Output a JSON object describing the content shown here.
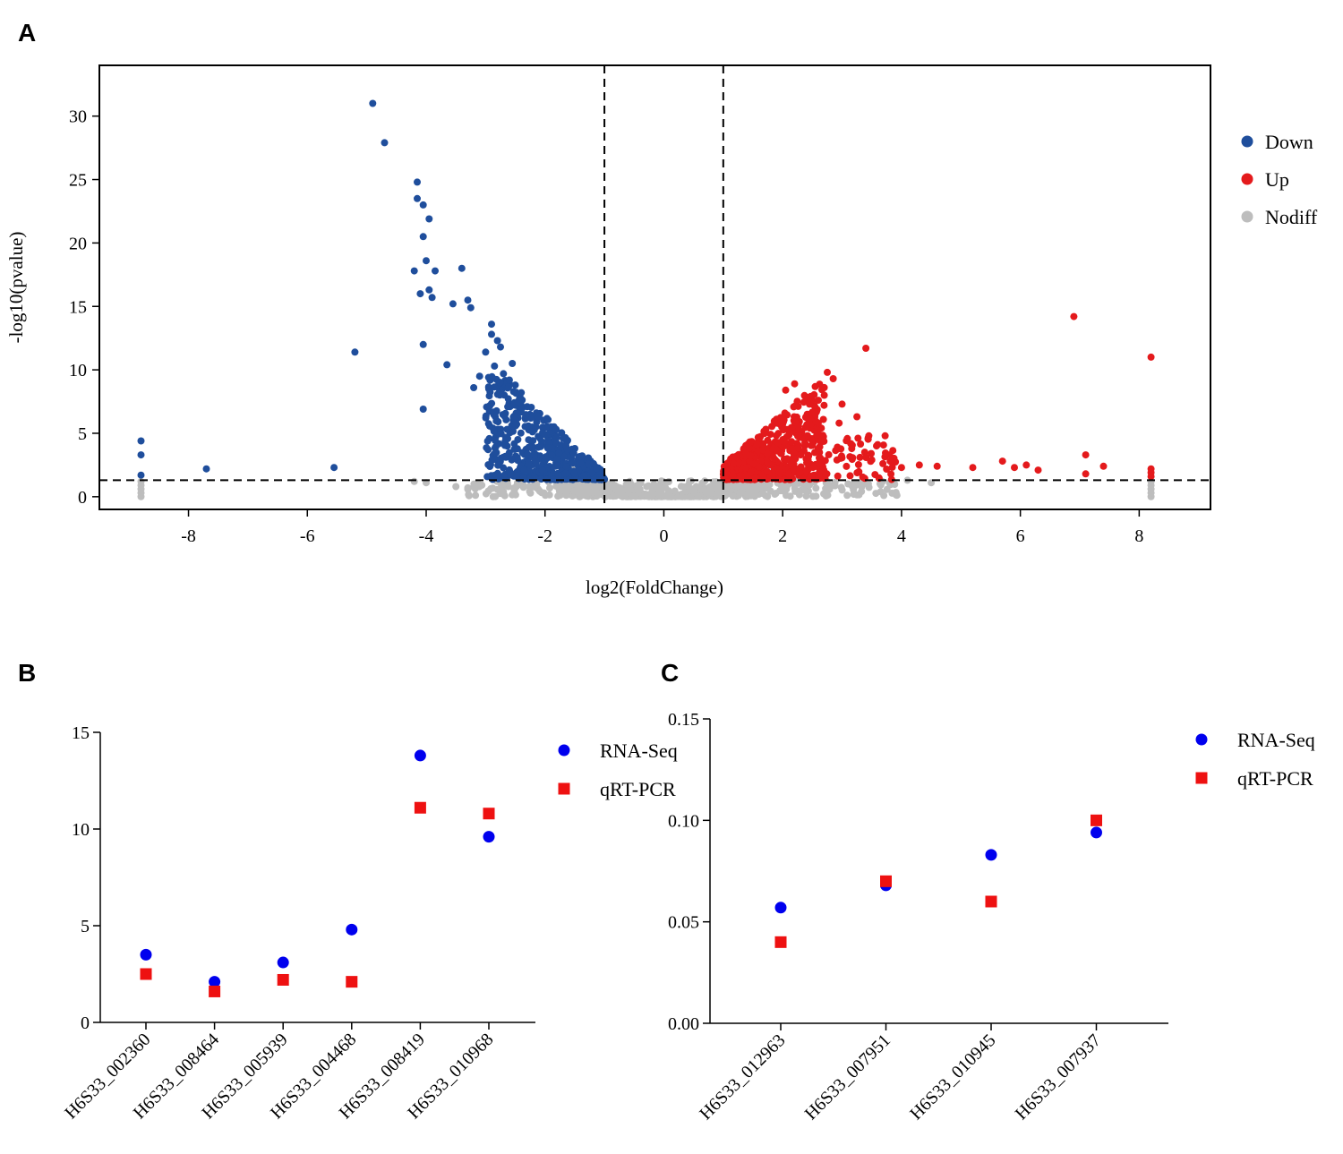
{
  "chart_data": [
    {
      "panel": "A",
      "type": "scatter",
      "title": "",
      "xlabel": "log2(FoldChange)",
      "ylabel": "-log10(pvalue)",
      "xlim": [
        -9.5,
        9.2
      ],
      "ylim": [
        -1,
        34
      ],
      "xticks": [
        -8,
        -6,
        -4,
        -2,
        0,
        2,
        4,
        6,
        8
      ],
      "yticks": [
        0,
        5,
        10,
        15,
        20,
        25,
        30
      ],
      "thresholds": {
        "fold_change": [
          -1,
          1
        ],
        "pvalue": 1.3
      },
      "legend": {
        "position": "right",
        "entries": [
          {
            "label": "Down",
            "color": "#1f4e9c"
          },
          {
            "label": "Up",
            "color": "#e41a1c"
          },
          {
            "label": "Nodiff",
            "color": "#bdbdbd"
          }
        ]
      },
      "series": [
        {
          "name": "Down",
          "color": "#1f4e9c",
          "points": [
            [
              -4.9,
              31.0
            ],
            [
              -4.7,
              27.9
            ],
            [
              -4.15,
              24.8
            ],
            [
              -4.15,
              23.5
            ],
            [
              -4.05,
              23.0
            ],
            [
              -3.95,
              21.9
            ],
            [
              -4.05,
              20.5
            ],
            [
              -4.0,
              18.6
            ],
            [
              -4.2,
              17.8
            ],
            [
              -3.4,
              18.0
            ],
            [
              -3.85,
              17.8
            ],
            [
              -3.95,
              16.3
            ],
            [
              -4.1,
              16.0
            ],
            [
              -3.9,
              15.7
            ],
            [
              -3.3,
              15.5
            ],
            [
              -3.55,
              15.2
            ],
            [
              -3.25,
              14.9
            ],
            [
              -5.2,
              11.4
            ],
            [
              -4.05,
              12.0
            ],
            [
              -3.65,
              10.4
            ],
            [
              -4.05,
              6.9
            ],
            [
              -3.0,
              11.4
            ],
            [
              -3.1,
              9.5
            ],
            [
              -2.9,
              13.6
            ],
            [
              -2.75,
              11.8
            ],
            [
              -2.85,
              10.3
            ],
            [
              -2.7,
              9.7
            ],
            [
              -2.6,
              9.2
            ],
            [
              -2.5,
              8.8
            ],
            [
              -2.4,
              8.2
            ],
            [
              -2.3,
              7.1
            ],
            [
              -2.9,
              12.8
            ],
            [
              -3.2,
              8.6
            ],
            [
              -2.8,
              12.3
            ],
            [
              -2.55,
              10.5
            ],
            [
              -7.7,
              2.2
            ],
            [
              -5.55,
              2.3
            ],
            [
              -8.8,
              4.4
            ],
            [
              -8.8,
              3.3
            ],
            [
              -8.8,
              1.7
            ]
          ]
        },
        {
          "name": "Up",
          "color": "#e41a1c",
          "points": [
            [
              6.9,
              14.2
            ],
            [
              8.2,
              11.0
            ],
            [
              3.4,
              11.7
            ],
            [
              2.75,
              9.8
            ],
            [
              2.85,
              9.3
            ],
            [
              2.2,
              8.9
            ],
            [
              2.05,
              8.4
            ],
            [
              2.7,
              8.0
            ],
            [
              2.6,
              7.6
            ],
            [
              3.0,
              7.3
            ],
            [
              2.95,
              5.8
            ],
            [
              3.25,
              6.3
            ],
            [
              3.45,
              4.8
            ],
            [
              7.1,
              3.3
            ],
            [
              7.4,
              2.4
            ],
            [
              7.1,
              1.8
            ],
            [
              5.7,
              2.8
            ],
            [
              5.9,
              2.3
            ],
            [
              6.1,
              2.5
            ],
            [
              4.6,
              2.4
            ],
            [
              5.2,
              2.3
            ],
            [
              8.2,
              2.2
            ],
            [
              8.2,
              1.9
            ],
            [
              8.2,
              1.6
            ],
            [
              4.0,
              2.3
            ],
            [
              3.5,
              2.9
            ],
            [
              3.3,
              3.1
            ],
            [
              3.8,
              3.3
            ],
            [
              4.3,
              2.5
            ],
            [
              6.3,
              2.1
            ]
          ]
        },
        {
          "name": "Nodiff",
          "color": "#bdbdbd",
          "points": [
            [
              -8.8,
              0.0
            ],
            [
              -8.8,
              0.3
            ],
            [
              -8.8,
              0.6
            ],
            [
              -8.8,
              0.9
            ],
            [
              -8.8,
              1.2
            ],
            [
              8.2,
              0.0
            ],
            [
              8.2,
              0.3
            ],
            [
              8.2,
              0.6
            ],
            [
              8.2,
              0.9
            ],
            [
              8.2,
              1.2
            ],
            [
              -4.2,
              1.2
            ],
            [
              -4.0,
              1.1
            ],
            [
              -3.5,
              0.8
            ],
            [
              -3.3,
              0.7
            ],
            [
              -2.5,
              0.7
            ],
            [
              4.5,
              1.1
            ],
            [
              4.1,
              1.3
            ],
            [
              3.8,
              1.1
            ]
          ]
        }
      ]
    },
    {
      "panel": "B",
      "type": "scatter",
      "title": "",
      "xlabel": "",
      "ylabel": "",
      "categories": [
        "H6S33_002360",
        "H6S33_008464",
        "H6S33_005939",
        "H6S33_004468",
        "H6S33_008419",
        "H6S33_010968"
      ],
      "ylim": [
        0,
        15
      ],
      "yticks": [
        "0",
        "5",
        "10",
        "15"
      ],
      "legend": {
        "position": "top-right"
      },
      "series": [
        {
          "name": "RNA-Seq",
          "marker": "circle",
          "color": "#0000ee",
          "values": [
            3.5,
            2.1,
            3.1,
            4.8,
            13.8,
            9.6
          ]
        },
        {
          "name": "qRT-PCR",
          "marker": "square",
          "color": "#ee1111",
          "values": [
            2.5,
            1.6,
            2.2,
            2.1,
            11.1,
            10.8
          ]
        }
      ]
    },
    {
      "panel": "C",
      "type": "scatter",
      "title": "",
      "xlabel": "",
      "ylabel": "",
      "categories": [
        "H6S33_012963",
        "H6S33_007951",
        "H6S33_010945",
        "H6S33_007937"
      ],
      "ylim": [
        0,
        0.15
      ],
      "yticks": [
        "0.00",
        "0.05",
        "0.10",
        "0.15"
      ],
      "legend": {
        "position": "top-right"
      },
      "series": [
        {
          "name": "RNA-Seq",
          "marker": "circle",
          "color": "#0000ee",
          "values": [
            0.057,
            0.068,
            0.083,
            0.094
          ]
        },
        {
          "name": "qRT-PCR",
          "marker": "square",
          "color": "#ee1111",
          "values": [
            0.04,
            0.07,
            0.06,
            0.1
          ]
        }
      ]
    }
  ]
}
